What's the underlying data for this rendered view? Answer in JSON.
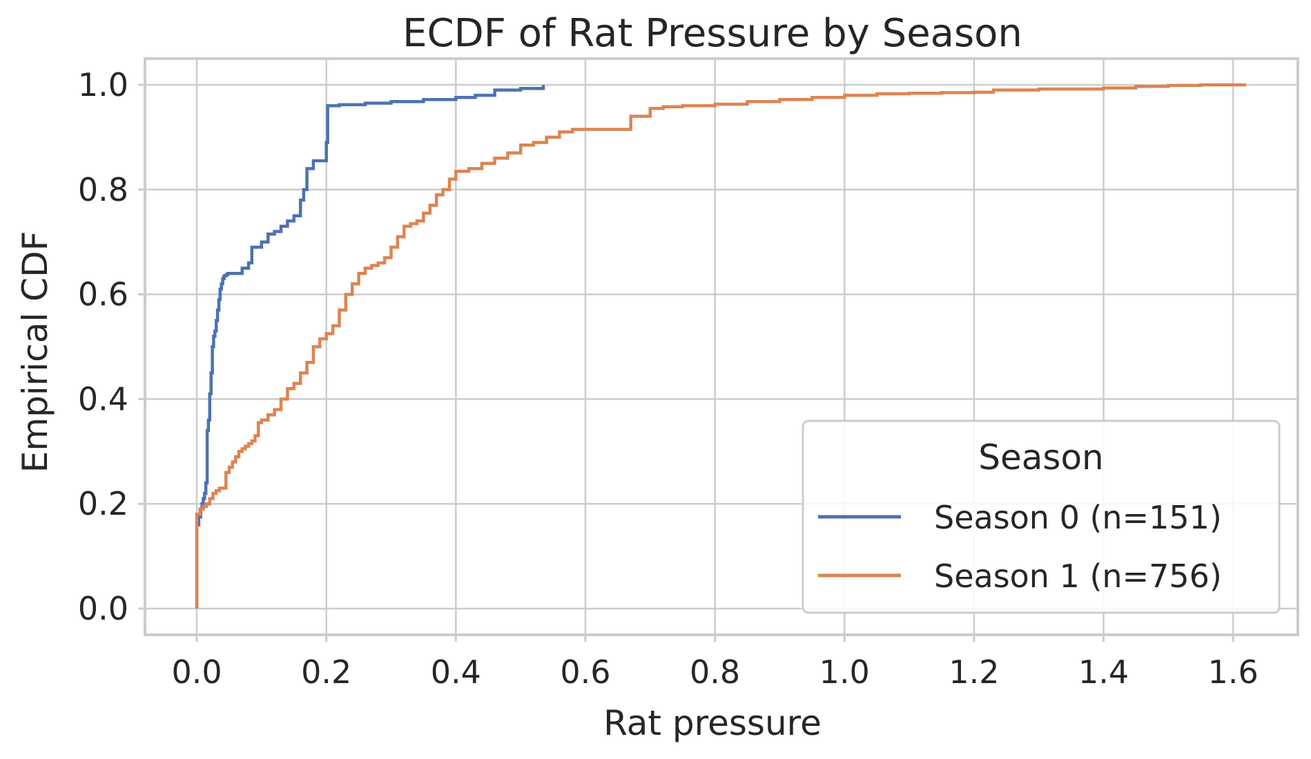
{
  "chart_data": {
    "type": "line",
    "title": "ECDF of Rat Pressure by Season",
    "xlabel": "Rat pressure",
    "ylabel": "Empirical CDF",
    "xlim": [
      -0.08,
      1.7
    ],
    "ylim": [
      -0.05,
      1.05
    ],
    "xticks": [
      "0.0",
      "0.2",
      "0.4",
      "0.6",
      "0.8",
      "1.0",
      "1.2",
      "1.4",
      "1.6"
    ],
    "yticks": [
      "0.0",
      "0.2",
      "0.4",
      "0.6",
      "0.8",
      "1.0"
    ],
    "grid": true,
    "legend": {
      "title": "Season",
      "placement": "lower-right"
    },
    "series": [
      {
        "name": "Season 0 (n=151)",
        "color": "#4c72b0",
        "x": [
          0.0,
          0.0,
          0.003,
          0.006,
          0.008,
          0.01,
          0.012,
          0.014,
          0.016,
          0.018,
          0.02,
          0.022,
          0.024,
          0.026,
          0.028,
          0.03,
          0.032,
          0.034,
          0.036,
          0.038,
          0.04,
          0.042,
          0.044,
          0.046,
          0.048,
          0.05,
          0.053,
          0.06,
          0.07,
          0.08,
          0.085,
          0.09,
          0.1,
          0.11,
          0.12,
          0.13,
          0.14,
          0.15,
          0.16,
          0.165,
          0.17,
          0.18,
          0.19,
          0.2,
          0.202,
          0.22,
          0.26,
          0.3,
          0.35,
          0.4,
          0.43,
          0.46,
          0.5,
          0.535
        ],
        "y": [
          0.0,
          0.16,
          0.175,
          0.19,
          0.2,
          0.21,
          0.22,
          0.24,
          0.34,
          0.36,
          0.41,
          0.45,
          0.5,
          0.52,
          0.53,
          0.55,
          0.57,
          0.59,
          0.61,
          0.62,
          0.63,
          0.635,
          0.636,
          0.638,
          0.64,
          0.64,
          0.64,
          0.64,
          0.65,
          0.66,
          0.69,
          0.69,
          0.7,
          0.715,
          0.72,
          0.73,
          0.74,
          0.75,
          0.78,
          0.8,
          0.84,
          0.855,
          0.855,
          0.89,
          0.96,
          0.962,
          0.965,
          0.968,
          0.972,
          0.976,
          0.98,
          0.99,
          0.993,
          1.0
        ]
      },
      {
        "name": "Season 1 (n=756)",
        "color": "#dd8452",
        "x": [
          0.0,
          0.0,
          0.005,
          0.01,
          0.015,
          0.02,
          0.025,
          0.03,
          0.035,
          0.04,
          0.045,
          0.05,
          0.055,
          0.06,
          0.065,
          0.07,
          0.075,
          0.08,
          0.085,
          0.09,
          0.095,
          0.1,
          0.11,
          0.12,
          0.13,
          0.14,
          0.15,
          0.16,
          0.17,
          0.18,
          0.19,
          0.2,
          0.21,
          0.22,
          0.23,
          0.24,
          0.25,
          0.26,
          0.27,
          0.28,
          0.29,
          0.3,
          0.31,
          0.32,
          0.33,
          0.34,
          0.35,
          0.36,
          0.37,
          0.38,
          0.39,
          0.4,
          0.42,
          0.44,
          0.46,
          0.48,
          0.5,
          0.52,
          0.54,
          0.56,
          0.58,
          0.6,
          0.63,
          0.66,
          0.67,
          0.7,
          0.72,
          0.75,
          0.8,
          0.85,
          0.9,
          0.95,
          1.0,
          1.05,
          1.1,
          1.15,
          1.2,
          1.23,
          1.3,
          1.4,
          1.45,
          1.5,
          1.55,
          1.62
        ],
        "y": [
          0.0,
          0.18,
          0.19,
          0.195,
          0.2,
          0.21,
          0.22,
          0.225,
          0.23,
          0.23,
          0.26,
          0.27,
          0.28,
          0.29,
          0.3,
          0.305,
          0.31,
          0.315,
          0.32,
          0.33,
          0.355,
          0.36,
          0.37,
          0.38,
          0.4,
          0.42,
          0.43,
          0.45,
          0.47,
          0.5,
          0.515,
          0.525,
          0.54,
          0.57,
          0.6,
          0.62,
          0.64,
          0.65,
          0.655,
          0.66,
          0.67,
          0.69,
          0.71,
          0.73,
          0.735,
          0.74,
          0.755,
          0.77,
          0.79,
          0.8,
          0.82,
          0.835,
          0.84,
          0.85,
          0.86,
          0.87,
          0.885,
          0.89,
          0.9,
          0.91,
          0.915,
          0.915,
          0.915,
          0.915,
          0.94,
          0.955,
          0.958,
          0.96,
          0.963,
          0.968,
          0.972,
          0.976,
          0.98,
          0.983,
          0.984,
          0.985,
          0.986,
          0.99,
          0.992,
          0.994,
          0.997,
          0.999,
          1.0,
          1.0
        ]
      }
    ]
  }
}
